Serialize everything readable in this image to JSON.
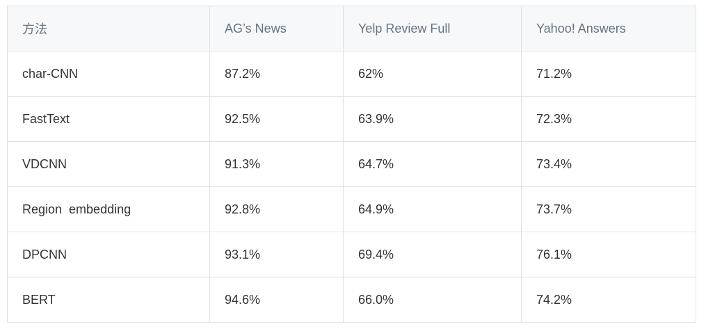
{
  "table": {
    "headers": [
      "方法",
      "AG’s News",
      "Yelp Review Full",
      "Yahoo! Answers"
    ],
    "rows": [
      [
        "char-CNN",
        "87.2%",
        "62%",
        "71.2%"
      ],
      [
        "FastText",
        "92.5%",
        "63.9%",
        "72.3%"
      ],
      [
        "VDCNN",
        "91.3%",
        "64.7%",
        "73.4%"
      ],
      [
        "Region  embedding",
        "92.8%",
        "64.9%",
        "73.7%"
      ],
      [
        "DPCNN",
        "93.1%",
        "69.4%",
        "76.1%"
      ],
      [
        "BERT",
        "94.6%",
        "66.0%",
        "74.2%"
      ]
    ]
  }
}
